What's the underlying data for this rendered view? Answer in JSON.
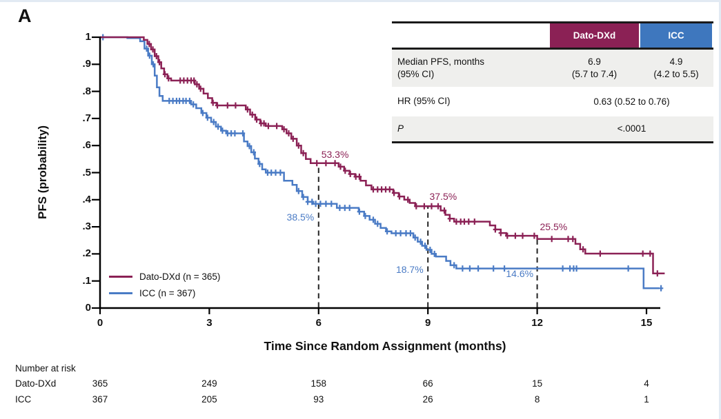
{
  "figure": {
    "panel_label": "A"
  },
  "results_table": {
    "header": {
      "dato": "Dato-DXd",
      "icc": "ICC",
      "dato_color": "#8B2155",
      "icc_color": "#3E77BE"
    },
    "median_row": {
      "label_line1": "Median PFS, months",
      "label_line2": "(95% CI)",
      "dato_line1": "6.9",
      "dato_line2": "(5.7 to 7.4)",
      "icc_line1": "4.9",
      "icc_line2": "(4.2 to 5.5)"
    },
    "hr_row": {
      "label": "HR (95% CI)",
      "value": "0.63 (0.52 to 0.76)"
    },
    "p_row": {
      "label": "P",
      "value": "<.0001"
    }
  },
  "number_at_risk": {
    "title": "Number at risk",
    "times": [
      0,
      3,
      6,
      9,
      12,
      15
    ],
    "rows": [
      {
        "label": "Dato-DXd",
        "counts": [
          "365",
          "249",
          "158",
          "66",
          "15",
          "4"
        ]
      },
      {
        "label": "ICC",
        "counts": [
          "367",
          "205",
          "93",
          "26",
          "8",
          "1"
        ]
      }
    ]
  },
  "chart_data": {
    "type": "line",
    "subtype": "kaplan-meier-step",
    "title": "",
    "xlabel": "Time Since Random Assignment (months)",
    "ylabel": "PFS (probability)",
    "xlim": [
      0,
      15.6
    ],
    "ylim": [
      0,
      1
    ],
    "x_ticks": [
      {
        "value": 0,
        "label": "0"
      },
      {
        "value": 3,
        "label": "3"
      },
      {
        "value": 6,
        "label": "6"
      },
      {
        "value": 9,
        "label": "9"
      },
      {
        "value": 12,
        "label": "12"
      },
      {
        "value": 15,
        "label": "15"
      }
    ],
    "y_ticks": [
      {
        "value": 0,
        "label": "0"
      },
      {
        "value": 0.1,
        "label": ".1"
      },
      {
        "value": 0.2,
        "label": ".2"
      },
      {
        "value": 0.3,
        "label": ".3"
      },
      {
        "value": 0.4,
        "label": ".4"
      },
      {
        "value": 0.5,
        "label": ".5"
      },
      {
        "value": 0.6,
        "label": ".6"
      },
      {
        "value": 0.7,
        "label": ".7"
      },
      {
        "value": 0.8,
        "label": ".8"
      },
      {
        "value": 0.9,
        "label": ".9"
      },
      {
        "value": 1,
        "label": "1"
      }
    ],
    "landmark_months": [
      6,
      9,
      12
    ],
    "grid": false,
    "legend_position": "lower-left",
    "series": [
      {
        "name": "Dato-DXd (n = 365)",
        "color": "#8B2155",
        "annotations": [
          {
            "text": "53.3%",
            "at_month": 6,
            "t": 6.45,
            "p": 0.568
          },
          {
            "text": "37.5%",
            "at_month": 9,
            "t": 9.42,
            "p": 0.412
          },
          {
            "text": "25.5%",
            "at_month": 12,
            "t": 12.45,
            "p": 0.3
          }
        ],
        "steps": [
          [
            0,
            1
          ],
          [
            1.2,
            0.99
          ],
          [
            1.3,
            0.975
          ],
          [
            1.4,
            0.955
          ],
          [
            1.5,
            0.93
          ],
          [
            1.6,
            0.908
          ],
          [
            1.68,
            0.885
          ],
          [
            1.76,
            0.863
          ],
          [
            1.85,
            0.848
          ],
          [
            1.95,
            0.84
          ],
          [
            2.6,
            0.826
          ],
          [
            2.72,
            0.81
          ],
          [
            2.84,
            0.792
          ],
          [
            2.96,
            0.775
          ],
          [
            3.08,
            0.758
          ],
          [
            3.2,
            0.748
          ],
          [
            4.0,
            0.733
          ],
          [
            4.12,
            0.714
          ],
          [
            4.26,
            0.696
          ],
          [
            4.4,
            0.682
          ],
          [
            4.55,
            0.672
          ],
          [
            5.0,
            0.66
          ],
          [
            5.12,
            0.645
          ],
          [
            5.25,
            0.625
          ],
          [
            5.4,
            0.6
          ],
          [
            5.52,
            0.572
          ],
          [
            5.65,
            0.55
          ],
          [
            5.78,
            0.535
          ],
          [
            6.55,
            0.522
          ],
          [
            6.7,
            0.507
          ],
          [
            6.85,
            0.495
          ],
          [
            7.0,
            0.485
          ],
          [
            7.15,
            0.47
          ],
          [
            7.3,
            0.453
          ],
          [
            7.45,
            0.438
          ],
          [
            8.05,
            0.425
          ],
          [
            8.2,
            0.412
          ],
          [
            8.35,
            0.4
          ],
          [
            8.5,
            0.388
          ],
          [
            8.65,
            0.376
          ],
          [
            9.35,
            0.36
          ],
          [
            9.48,
            0.344
          ],
          [
            9.6,
            0.33
          ],
          [
            9.72,
            0.319
          ],
          [
            10.7,
            0.305
          ],
          [
            10.85,
            0.29
          ],
          [
            11.0,
            0.277
          ],
          [
            11.15,
            0.267
          ],
          [
            12.0,
            0.255
          ],
          [
            13.05,
            0.237
          ],
          [
            13.18,
            0.217
          ],
          [
            13.32,
            0.201
          ],
          [
            15.18,
            0.128
          ],
          [
            15.5,
            0.128
          ]
        ],
        "censor_months": [
          1.35,
          1.45,
          1.55,
          1.63,
          1.78,
          1.88,
          2.2,
          2.3,
          2.4,
          2.5,
          2.58,
          2.66,
          2.76,
          3.1,
          3.22,
          3.5,
          3.72,
          4.05,
          4.18,
          4.3,
          4.42,
          4.5,
          4.62,
          4.85,
          5.05,
          5.18,
          5.3,
          5.45,
          5.58,
          5.95,
          6.2,
          6.45,
          6.6,
          6.73,
          6.87,
          7.02,
          7.12,
          7.5,
          7.62,
          7.73,
          7.84,
          7.95,
          8.07,
          8.22,
          8.45,
          8.68,
          8.9,
          9.1,
          9.28,
          9.45,
          9.6,
          9.78,
          9.9,
          10.0,
          10.12,
          10.28,
          10.85,
          11.0,
          11.18,
          11.4,
          11.6,
          11.92,
          12.4,
          12.85,
          12.98,
          13.26,
          13.73,
          14.9,
          15.1,
          15.3
        ]
      },
      {
        "name": "ICC (n = 367)",
        "color": "#4A7BC5",
        "annotations": [
          {
            "text": "38.5%",
            "at_month": 6,
            "t": 5.5,
            "p": 0.335
          },
          {
            "text": "18.7%",
            "at_month": 9,
            "t": 8.5,
            "p": 0.143
          },
          {
            "text": "14.6%",
            "at_month": 12,
            "t": 11.52,
            "p": 0.128
          }
        ],
        "steps": [
          [
            0,
            1
          ],
          [
            0.75,
            0.997
          ],
          [
            1.1,
            0.985
          ],
          [
            1.22,
            0.958
          ],
          [
            1.32,
            0.932
          ],
          [
            1.42,
            0.9
          ],
          [
            1.5,
            0.858
          ],
          [
            1.56,
            0.815
          ],
          [
            1.63,
            0.783
          ],
          [
            1.72,
            0.765
          ],
          [
            2.5,
            0.752
          ],
          [
            2.64,
            0.738
          ],
          [
            2.78,
            0.72
          ],
          [
            2.92,
            0.703
          ],
          [
            3.05,
            0.687
          ],
          [
            3.18,
            0.67
          ],
          [
            3.32,
            0.655
          ],
          [
            3.46,
            0.645
          ],
          [
            3.95,
            0.615
          ],
          [
            4.05,
            0.598
          ],
          [
            4.15,
            0.575
          ],
          [
            4.25,
            0.552
          ],
          [
            4.35,
            0.532
          ],
          [
            4.45,
            0.512
          ],
          [
            4.55,
            0.5
          ],
          [
            5.05,
            0.47
          ],
          [
            5.28,
            0.455
          ],
          [
            5.4,
            0.432
          ],
          [
            5.55,
            0.41
          ],
          [
            5.7,
            0.392
          ],
          [
            5.85,
            0.385
          ],
          [
            6.5,
            0.37
          ],
          [
            7.1,
            0.356
          ],
          [
            7.25,
            0.34
          ],
          [
            7.4,
            0.326
          ],
          [
            7.55,
            0.311
          ],
          [
            7.7,
            0.296
          ],
          [
            7.85,
            0.283
          ],
          [
            8.0,
            0.276
          ],
          [
            8.6,
            0.26
          ],
          [
            8.72,
            0.245
          ],
          [
            8.84,
            0.23
          ],
          [
            8.96,
            0.215
          ],
          [
            9.1,
            0.2
          ],
          [
            9.22,
            0.19
          ],
          [
            9.5,
            0.174
          ],
          [
            9.62,
            0.158
          ],
          [
            9.78,
            0.146
          ],
          [
            14.92,
            0.073
          ],
          [
            15.35,
            0.073
          ]
        ],
        "censor_months": [
          0.08,
          1.28,
          1.36,
          1.46,
          1.9,
          2.0,
          2.1,
          2.18,
          2.28,
          2.36,
          2.46,
          2.56,
          2.82,
          2.95,
          3.12,
          3.24,
          3.36,
          3.5,
          3.6,
          3.7,
          3.92,
          4.1,
          4.22,
          4.38,
          4.6,
          4.7,
          4.82,
          4.95,
          5.45,
          5.58,
          5.7,
          5.82,
          5.92,
          6.05,
          6.2,
          6.35,
          6.58,
          6.72,
          6.85,
          7.12,
          7.28,
          7.5,
          7.62,
          7.88,
          8.12,
          8.25,
          8.4,
          8.52,
          8.65,
          8.8,
          8.92,
          9.06,
          9.18,
          9.72,
          9.95,
          10.15,
          10.38,
          10.8,
          11.1,
          12.7,
          12.9,
          13.0,
          13.08,
          14.5,
          15.4
        ]
      }
    ]
  }
}
